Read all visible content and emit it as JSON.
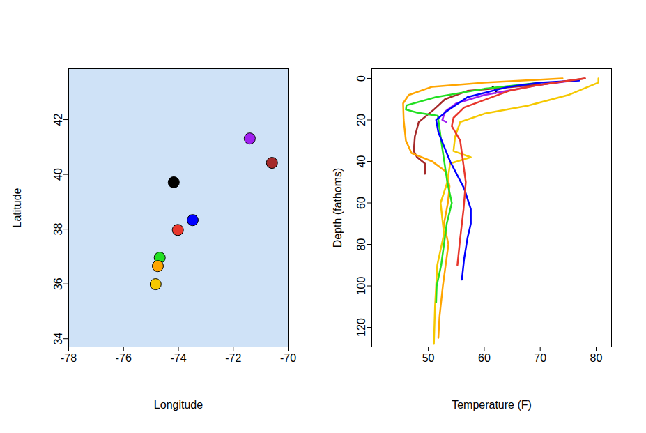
{
  "chart_data": [
    {
      "type": "scatter",
      "xlabel": "Longitude",
      "ylabel": "Latitude",
      "xlim": [
        -78,
        -70
      ],
      "xticks": [
        -78,
        -76,
        -74,
        -72,
        -70
      ],
      "ylim": [
        33.7,
        43.86
      ],
      "yticks": [
        34,
        36,
        38,
        40,
        42
      ],
      "x": [
        -71.4,
        -70.59,
        -74.17,
        -73.48,
        -74.02,
        -74.68,
        -74.75,
        -74.83
      ],
      "values": [
        41.31,
        40.42,
        39.71,
        38.33,
        37.97,
        36.96,
        36.65,
        35.99
      ],
      "colors": [
        "#a020f0",
        "#a52a2a",
        "#000000",
        "#0000ff",
        "#e8372c",
        "#22e022",
        "#ffa500",
        "#f5c800"
      ],
      "marker": "circle"
    },
    {
      "type": "line",
      "xlabel": "Temperature (F)",
      "ylabel": "Depth (fathoms)",
      "xlim": [
        39.9,
        82.74
      ],
      "xticks": [
        50,
        60,
        70,
        80
      ],
      "ylim": [
        129.4,
        -4.7
      ],
      "yticks": [
        0,
        20,
        40,
        60,
        80,
        100,
        120
      ],
      "series": [
        {
          "color": "#000000",
          "x": [
            61.5,
            62.2,
            62.0
          ],
          "values": [
            4,
            6,
            7
          ]
        },
        {
          "color": "#a020f0",
          "x": [
            76,
            70,
            60,
            55,
            53,
            52.5,
            53.2
          ],
          "values": [
            1,
            3,
            8,
            12,
            16,
            20,
            21
          ]
        },
        {
          "color": "#a52a2a",
          "x": [
            78,
            70,
            57,
            53,
            51,
            48.3,
            47.6,
            47.4,
            48,
            49.4,
            49.4
          ],
          "values": [
            0,
            3,
            6,
            10,
            15,
            21,
            28,
            35,
            38,
            41,
            46
          ]
        },
        {
          "color": "#ffa500",
          "x": [
            74,
            60,
            50.7,
            46.5,
            45.5,
            45.6,
            46,
            47,
            50.7,
            53.2,
            53.8,
            53.5,
            52.8,
            53.6,
            52.6,
            52,
            51.8
          ],
          "values": [
            0,
            2,
            4,
            8,
            12,
            20,
            30,
            36,
            40,
            45,
            52,
            60,
            70,
            80,
            100,
            115,
            125
          ]
        },
        {
          "color": "#f5c800",
          "x": [
            80.4,
            80.4,
            75,
            68,
            60,
            55.7,
            54.8,
            54.5,
            57.6,
            53.9,
            53.4,
            52.2,
            52.8,
            51.6,
            51.2,
            51
          ],
          "values": [
            0,
            2,
            8,
            13,
            17,
            21,
            28,
            35,
            38,
            41,
            50,
            60,
            75,
            90,
            110,
            128
          ]
        },
        {
          "color": "#22e022",
          "x": [
            70,
            60,
            51.4,
            46.1,
            46,
            48,
            51.7,
            52.3,
            53.4,
            54.2,
            53.3,
            52.3,
            51.5,
            51.4
          ],
          "values": [
            2,
            5,
            9,
            13,
            15,
            16.5,
            18,
            30,
            50,
            60,
            70,
            90,
            100,
            108
          ]
        },
        {
          "color": "#0000ff",
          "x": [
            77,
            70,
            64.4,
            57,
            53.2,
            51.4,
            51.8,
            53.9,
            56.4,
            57.6,
            57.6,
            57,
            56.4,
            56
          ],
          "values": [
            1,
            2,
            4,
            9,
            16,
            20,
            26,
            40,
            53,
            63,
            70,
            77,
            87,
            97
          ]
        },
        {
          "color": "#e8372c",
          "x": [
            78,
            70,
            64.4,
            56.4,
            54.5,
            54.2,
            55.7,
            56.7,
            56.3,
            55.7,
            55.2
          ],
          "values": [
            0,
            3,
            6,
            14,
            19,
            23,
            30,
            50,
            63,
            77,
            90
          ]
        }
      ]
    }
  ]
}
